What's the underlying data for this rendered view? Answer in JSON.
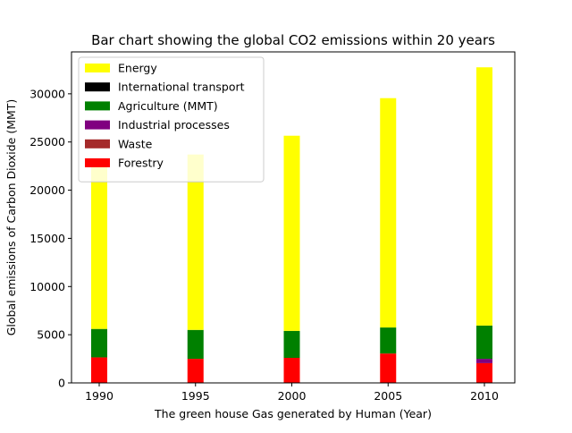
{
  "chart_data": {
    "type": "bar",
    "stacked": true,
    "title": "Bar chart showing the global CO2 emissions within 20 years",
    "xlabel": "The green house Gas generated by Human (Year)",
    "ylabel": "Global emissions of Carbon Dioxide (MMT)",
    "categories": [
      "1990",
      "1995",
      "2000",
      "2005",
      "2010"
    ],
    "ylim": [
      0,
      34350
    ],
    "yticks": [
      0,
      5000,
      10000,
      15000,
      20000,
      25000,
      30000
    ],
    "grid": false,
    "legend_position": "upper-left",
    "series": [
      {
        "name": "Forestry",
        "color": "#ff0000",
        "values": [
          2650,
          2500,
          2600,
          3050,
          2050
        ]
      },
      {
        "name": "Waste",
        "color": "#a52a2a",
        "values": [
          0,
          0,
          0,
          0,
          0
        ]
      },
      {
        "name": "Industrial processes",
        "color": "#800080",
        "values": [
          0,
          0,
          0,
          0,
          450
        ]
      },
      {
        "name": "Agriculture (MMT)",
        "color": "#008000",
        "values": [
          2950,
          3000,
          2800,
          2700,
          3450
        ]
      },
      {
        "name": "International transport",
        "color": "#000000",
        "values": [
          0,
          0,
          0,
          0,
          0
        ]
      },
      {
        "name": "Energy",
        "color": "#ffff00",
        "values": [
          17350,
          18200,
          20250,
          23800,
          26800
        ]
      }
    ],
    "legend_order": [
      "Energy",
      "International transport",
      "Agriculture (MMT)",
      "Industrial processes",
      "Waste",
      "Forestry"
    ]
  }
}
